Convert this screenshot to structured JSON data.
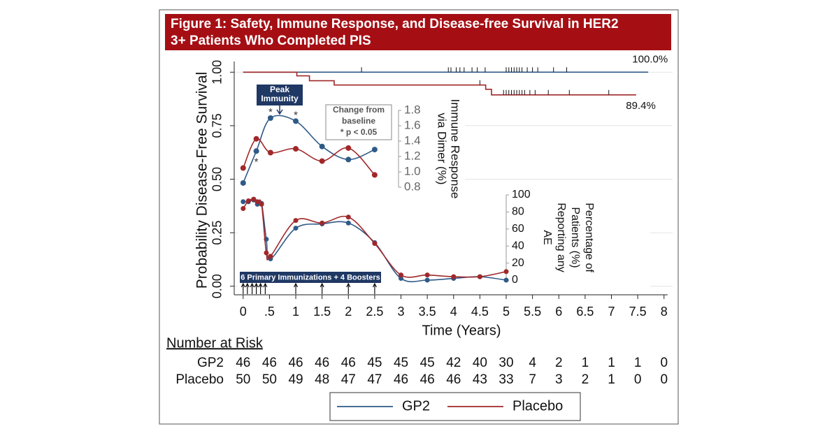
{
  "figure_title": [
    "Figure 1: Safety, Immune Response, and Disease-free Survival in HER2",
    "3+ Patients Who Completed PIS"
  ],
  "chart_data": [
    {
      "type": "step",
      "ylabel": "Probability Disease-Free Survival",
      "xlabel": "Time (Years)",
      "xlim": [
        -0.17,
        8.07
      ],
      "ylim": [
        -0.04,
        1.05
      ],
      "grid": true,
      "xticks": [
        0,
        {
          "value": 0.5,
          "label": ".5"
        },
        1,
        1.5,
        2,
        2.5,
        3,
        3.5,
        4,
        4.5,
        5,
        5.5,
        6,
        6.5,
        7,
        7.5,
        8
      ],
      "yticks": [
        {
          "value": 0,
          "label": "0.00"
        },
        0.25,
        {
          "value": 0.5,
          "label": "0.50"
        },
        0.75,
        {
          "value": 1,
          "label": "1.00"
        }
      ],
      "series": [
        {
          "name": "GP2",
          "color": "#2e5a87",
          "x": [
            0,
            7.7
          ],
          "values": [
            1,
            1
          ],
          "end_label": "100.0%",
          "censored": [
            2.25,
            3.9,
            3.95,
            4.05,
            4.12,
            4.2,
            4.35,
            4.45,
            4.6,
            5.0,
            5.05,
            5.1,
            5.15,
            5.2,
            5.25,
            5.3,
            5.4,
            5.5,
            5.6,
            5.9,
            6.15
          ]
        },
        {
          "name": "Placebo",
          "color": "#a0282a",
          "x": [
            0,
            1.02,
            1.26,
            1.73,
            4.61,
            4.72,
            7.47
          ],
          "values": [
            1,
            0.983,
            0.96,
            0.94,
            0.92,
            0.894,
            0.894
          ],
          "end_label": "89.4%",
          "censored": [
            4.5,
            4.95,
            5.0,
            5.05,
            5.1,
            5.15,
            5.2,
            5.25,
            5.3,
            5.35,
            5.45,
            5.55,
            5.8,
            6.2,
            6.95
          ]
        }
      ]
    },
    {
      "type": "line",
      "ylabel_lines": [
        "Immune Response",
        "via Dimer (%)"
      ],
      "ylim": [
        0.8,
        1.8
      ],
      "yticks": [
        0.8,
        {
          "value": 1,
          "label": "1.0"
        },
        1.2,
        1.4,
        1.6,
        1.8
      ],
      "series": [
        {
          "name": "GP2",
          "color": "#2e5a87",
          "x": [
            0,
            0.25,
            0.52,
            1,
            1.5,
            2,
            2.5
          ],
          "values": [
            0.855,
            1.27,
            1.7,
            1.66,
            1.33,
            1.16,
            1.29
          ]
        },
        {
          "name": "Placebo",
          "color": "#a0282a",
          "x": [
            0,
            0.25,
            0.52,
            1,
            1.5,
            2,
            2.5
          ],
          "values": [
            1.05,
            1.43,
            1.25,
            1.3,
            1.14,
            1.31,
            0.96
          ]
        }
      ],
      "significance": {
        "label": "*",
        "x": [
          0.25,
          0.52,
          1
        ]
      },
      "peak_label": [
        "Peak",
        "Immunity"
      ],
      "note": [
        "Change from",
        "baseline",
        "* p < 0.05"
      ]
    },
    {
      "type": "line",
      "ylabel_lines": [
        "Percentage of",
        "Patients (%)",
        "Reporting any",
        "AE"
      ],
      "ylim": [
        0,
        100
      ],
      "yticks": [
        0,
        20,
        40,
        60,
        80,
        100
      ],
      "series": [
        {
          "name": "GP2",
          "color": "#2e5a87",
          "x": [
            0,
            0.1,
            0.2,
            0.27,
            0.35,
            0.44,
            0.52,
            1,
            1.5,
            2,
            2.5,
            3,
            3.5,
            4,
            4.5,
            5
          ],
          "values": [
            92,
            92,
            94,
            89,
            90,
            48,
            25,
            61,
            66,
            67,
            44,
            2,
            0,
            2,
            4,
            0
          ]
        },
        {
          "name": "Placebo",
          "color": "#a0282a",
          "x": [
            0,
            0.1,
            0.2,
            0.27,
            0.35,
            0.44,
            0.52,
            1,
            1.5,
            2,
            2.5,
            3,
            3.5,
            4,
            4.5,
            5
          ],
          "values": [
            84,
            93,
            95,
            92,
            89,
            32,
            28,
            70,
            67,
            74,
            43,
            6,
            6,
            4,
            4,
            10
          ]
        }
      ]
    }
  ],
  "immunizations": {
    "label": "6 Primary Immunizations + 4 Boosters",
    "times": [
      0,
      0.08,
      0.17,
      0.25,
      0.33,
      0.42,
      1,
      1.5,
      2,
      2.5
    ]
  },
  "risk_table": {
    "title": "Number at Risk",
    "rows": [
      {
        "name": "GP2",
        "values": [
          46,
          46,
          46,
          46,
          46,
          45,
          45,
          45,
          42,
          40,
          30,
          4,
          2,
          1,
          1,
          1,
          0
        ]
      },
      {
        "name": "Placebo",
        "values": [
          50,
          50,
          49,
          48,
          47,
          47,
          46,
          46,
          46,
          43,
          33,
          7,
          3,
          2,
          1,
          0,
          0
        ]
      }
    ]
  }
}
